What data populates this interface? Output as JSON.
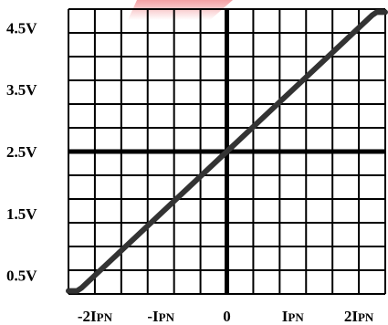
{
  "chart_data": {
    "type": "line",
    "title": "",
    "xlabel": "",
    "ylabel": "",
    "x_ticks": [
      {
        "value": -2,
        "label_main": "-2I",
        "label_small": "PN"
      },
      {
        "value": -1,
        "label_main": "-I",
        "label_small": "PN"
      },
      {
        "value": 0,
        "label_main": "0",
        "label_small": ""
      },
      {
        "value": 1,
        "label_main": "I",
        "label_small": "PN"
      },
      {
        "value": 2,
        "label_main": "2I",
        "label_small": "PN"
      }
    ],
    "y_ticks": [
      {
        "value": 0.5,
        "label": "0.5V"
      },
      {
        "value": 1.5,
        "label": "1.5V"
      },
      {
        "value": 2.5,
        "label": "2.5V"
      },
      {
        "value": 3.5,
        "label": "3.5V"
      },
      {
        "value": 4.5,
        "label": "4.5V"
      }
    ],
    "xlim": [
      -2.4,
      2.4
    ],
    "ylim": [
      0.2,
      4.8
    ],
    "grid": true,
    "series": [
      {
        "x": [
          -2.4,
          -2.27,
          -2.2,
          0,
          2.2,
          2.27,
          2.4
        ],
        "y": [
          0.25,
          0.25,
          0.3,
          2.5,
          4.7,
          4.75,
          4.75
        ]
      }
    ],
    "accent_color": "#e8333a",
    "line_color": "#333333",
    "axis_color": "#000000"
  }
}
